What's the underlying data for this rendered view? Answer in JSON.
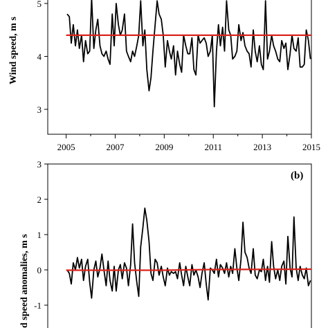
{
  "chart_data": [
    {
      "type": "line",
      "panel": "a",
      "ylabel": "Wind speed,  m s",
      "xlim": [
        2004.25,
        2015.0
      ],
      "ylim": [
        2.5,
        5.0
      ],
      "xticks": [
        "2005",
        "2007",
        "2009",
        "2011",
        "2013",
        "2015"
      ],
      "yticks": [
        "3",
        "4",
        "5"
      ],
      "series": [
        {
          "color": "#000000",
          "x": [
            2005.04,
            2005.13,
            2005.21,
            2005.29,
            2005.38,
            2005.46,
            2005.54,
            2005.63,
            2005.71,
            2005.79,
            2005.88,
            2005.96,
            2006.04,
            2006.13,
            2006.21,
            2006.29,
            2006.38,
            2006.46,
            2006.54,
            2006.63,
            2006.71,
            2006.79,
            2006.88,
            2006.96,
            2007.04,
            2007.13,
            2007.21,
            2007.29,
            2007.38,
            2007.46,
            2007.54,
            2007.63,
            2007.71,
            2007.79,
            2007.88,
            2007.96,
            2008.04,
            2008.13,
            2008.21,
            2008.29,
            2008.38,
            2008.46,
            2008.54,
            2008.63,
            2008.71,
            2008.79,
            2008.88,
            2008.96,
            2009.04,
            2009.13,
            2009.21,
            2009.29,
            2009.38,
            2009.46,
            2009.54,
            2009.63,
            2009.71,
            2009.79,
            2009.88,
            2009.96,
            2010.04,
            2010.13,
            2010.21,
            2010.29,
            2010.38,
            2010.46,
            2010.54,
            2010.63,
            2010.71,
            2010.79,
            2010.88,
            2010.96,
            2011.04,
            2011.13,
            2011.21,
            2011.29,
            2011.38,
            2011.46,
            2011.54,
            2011.63,
            2011.71,
            2011.79,
            2011.88,
            2011.96,
            2012.04,
            2012.13,
            2012.21,
            2012.29,
            2012.38,
            2012.46,
            2012.54,
            2012.63,
            2012.71,
            2012.79,
            2012.88,
            2012.96,
            2013.04,
            2013.13,
            2013.21,
            2013.29,
            2013.38,
            2013.46,
            2013.54,
            2013.63,
            2013.71,
            2013.79,
            2013.88,
            2013.96,
            2014.04,
            2014.13,
            2014.21,
            2014.29,
            2014.38,
            2014.46,
            2014.54,
            2014.63,
            2014.71,
            2014.79,
            2014.88,
            2014.96
          ],
          "y": [
            4.8,
            4.75,
            4.25,
            4.6,
            4.2,
            4.5,
            4.15,
            4.4,
            3.9,
            4.3,
            4.05,
            4.1,
            5.1,
            4.15,
            4.5,
            4.7,
            4.2,
            4.05,
            4.0,
            4.1,
            3.95,
            3.85,
            4.8,
            4.2,
            5.0,
            4.6,
            4.4,
            4.5,
            4.8,
            4.1,
            4.0,
            3.9,
            4.1,
            4.0,
            4.2,
            4.4,
            5.05,
            4.2,
            4.5,
            3.75,
            3.35,
            3.6,
            4.1,
            4.6,
            5.05,
            4.8,
            4.7,
            4.4,
            3.8,
            4.3,
            4.1,
            3.95,
            4.2,
            3.65,
            4.1,
            3.85,
            3.7,
            4.4,
            4.2,
            4.05,
            4.05,
            4.35,
            3.75,
            3.65,
            4.4,
            4.25,
            4.3,
            4.35,
            4.25,
            4.0,
            4.1,
            4.4,
            3.05,
            4.1,
            4.6,
            4.2,
            4.55,
            4.1,
            5.05,
            4.5,
            4.4,
            3.95,
            4.0,
            4.1,
            4.6,
            4.3,
            4.45,
            4.2,
            4.1,
            4.05,
            3.8,
            4.5,
            4.1,
            3.9,
            4.2,
            3.85,
            3.75,
            5.05,
            3.95,
            4.1,
            4.4,
            4.2,
            4.1,
            3.95,
            3.9,
            4.3,
            4.15,
            4.25,
            3.75,
            4.05,
            4.4,
            4.15,
            4.1,
            4.35,
            3.8,
            3.8,
            3.85,
            4.5,
            4.3,
            3.95
          ]
        },
        {
          "color": "#d9241c",
          "x": [
            2005.0,
            2015.0
          ],
          "y": [
            4.4,
            4.4
          ]
        }
      ]
    },
    {
      "type": "line",
      "panel": "b",
      "panel_label": "(b)",
      "ylabel": "d speed anomalies,  m s",
      "xlim": [
        2004.25,
        2015.0
      ],
      "ylim": [
        -1.55,
        3.0
      ],
      "yticks": [
        "3",
        "2",
        "1",
        "0",
        "-1"
      ],
      "series": [
        {
          "color": "#000000",
          "x": [
            2005.04,
            2005.13,
            2005.21,
            2005.29,
            2005.38,
            2005.46,
            2005.54,
            2005.63,
            2005.71,
            2005.79,
            2005.88,
            2005.96,
            2006.04,
            2006.13,
            2006.21,
            2006.29,
            2006.38,
            2006.46,
            2006.54,
            2006.63,
            2006.71,
            2006.79,
            2006.88,
            2006.96,
            2007.04,
            2007.13,
            2007.21,
            2007.29,
            2007.38,
            2007.46,
            2007.54,
            2007.63,
            2007.71,
            2007.79,
            2007.88,
            2007.96,
            2008.04,
            2008.13,
            2008.21,
            2008.29,
            2008.38,
            2008.46,
            2008.54,
            2008.63,
            2008.71,
            2008.79,
            2008.88,
            2008.96,
            2009.04,
            2009.13,
            2009.21,
            2009.29,
            2009.38,
            2009.46,
            2009.54,
            2009.63,
            2009.71,
            2009.79,
            2009.88,
            2009.96,
            2010.04,
            2010.13,
            2010.21,
            2010.29,
            2010.38,
            2010.46,
            2010.54,
            2010.63,
            2010.71,
            2010.79,
            2010.88,
            2010.96,
            2011.04,
            2011.13,
            2011.21,
            2011.29,
            2011.38,
            2011.46,
            2011.54,
            2011.63,
            2011.71,
            2011.79,
            2011.88,
            2011.96,
            2012.04,
            2012.13,
            2012.21,
            2012.29,
            2012.38,
            2012.46,
            2012.54,
            2012.63,
            2012.71,
            2012.79,
            2012.88,
            2012.96,
            2013.04,
            2013.13,
            2013.21,
            2013.29,
            2013.38,
            2013.46,
            2013.54,
            2013.63,
            2013.71,
            2013.79,
            2013.88,
            2013.96,
            2014.04,
            2014.13,
            2014.21,
            2014.29,
            2014.38,
            2014.46,
            2014.54,
            2014.63,
            2014.71,
            2014.79,
            2014.88,
            2014.96
          ],
          "y": [
            0.0,
            -0.1,
            -0.4,
            0.2,
            0.0,
            0.35,
            0.05,
            0.3,
            -0.3,
            0.1,
            0.3,
            -0.35,
            -0.8,
            0.0,
            0.25,
            -0.2,
            0.05,
            0.45,
            0.0,
            -0.45,
            0.25,
            -0.3,
            -0.6,
            0.1,
            -0.6,
            0.0,
            0.15,
            -0.25,
            0.2,
            0.05,
            -0.45,
            0.15,
            1.3,
            0.2,
            -0.35,
            -0.75,
            0.65,
            1.2,
            1.75,
            1.4,
            0.8,
            -0.1,
            -0.3,
            0.3,
            0.2,
            -0.15,
            0.1,
            -0.2,
            -0.45,
            0.05,
            -0.15,
            -0.05,
            -0.1,
            -0.05,
            -0.25,
            0.2,
            -0.15,
            -0.45,
            0.1,
            -0.2,
            -0.45,
            0.15,
            -0.15,
            0.0,
            -0.2,
            -0.5,
            -0.1,
            0.2,
            -0.4,
            -0.85,
            0.05,
            0.0,
            -0.1,
            0.3,
            -0.2,
            0.15,
            0.05,
            -0.1,
            0.2,
            -0.2,
            0.1,
            -0.1,
            0.6,
            0.05,
            -0.3,
            0.3,
            1.35,
            0.5,
            0.35,
            0.05,
            -0.1,
            0.6,
            -0.15,
            -0.25,
            0.0,
            -0.05,
            0.3,
            -0.3,
            0.1,
            -0.35,
            0.8,
            0.1,
            -0.25,
            0.0,
            -0.3,
            0.1,
            0.25,
            -0.4,
            0.95,
            0.05,
            -0.2,
            1.5,
            0.05,
            -0.3,
            0.1,
            -0.15,
            -0.25,
            0.05,
            -0.45,
            -0.3
          ]
        },
        {
          "color": "#d9241c",
          "x": [
            2005.0,
            2009.0,
            2011.0,
            2015.0
          ],
          "y": [
            -0.01,
            -0.01,
            0.01,
            0.02
          ]
        }
      ]
    }
  ]
}
